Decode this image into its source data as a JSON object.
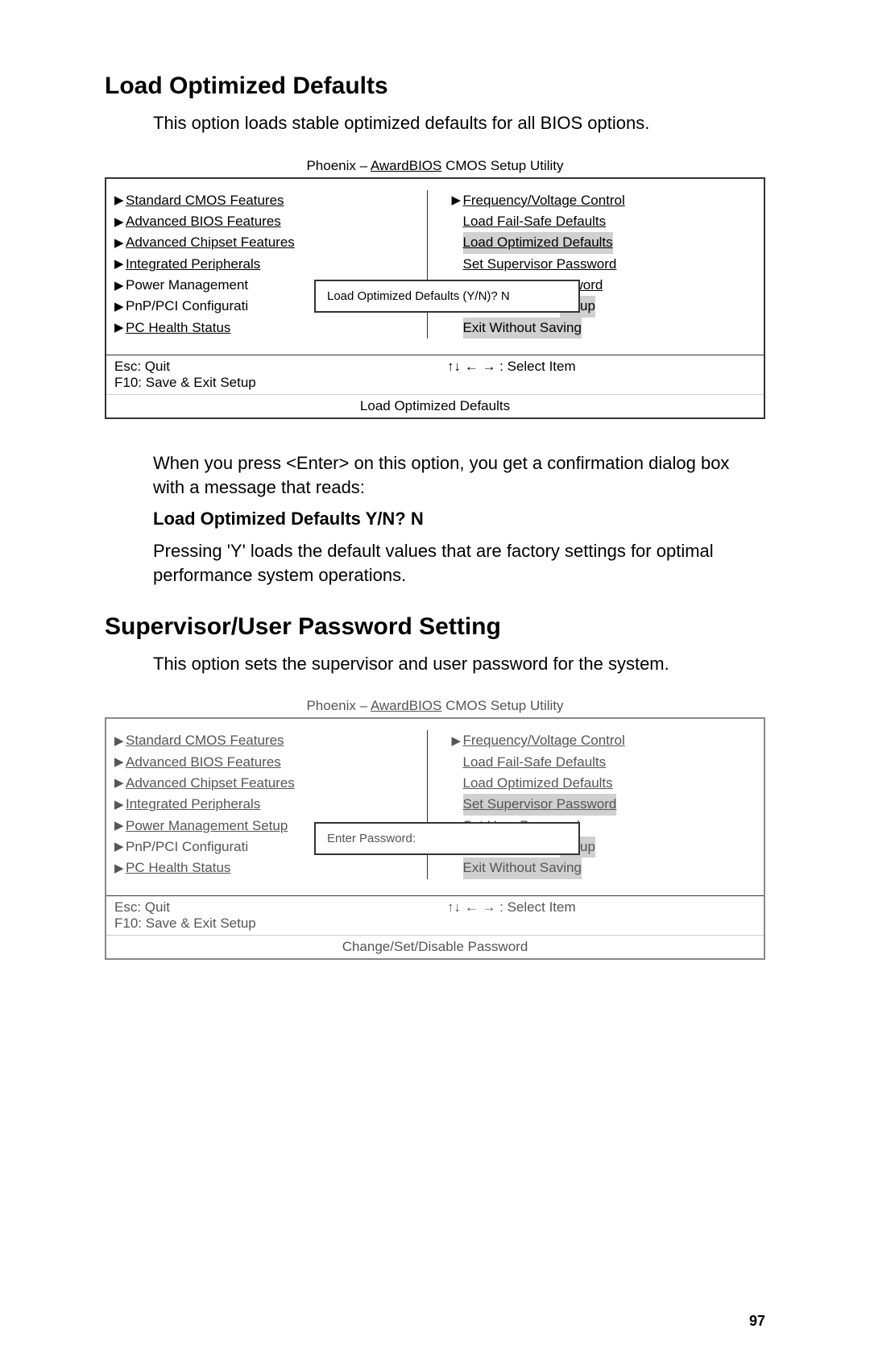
{
  "section1": {
    "heading": "Load Optimized Defaults",
    "intro": "This option loads stable optimized defaults for all BIOS options.",
    "para1": "When you press <Enter> on this option, you get a confirmation dialog box with a message that reads:",
    "prompt": "Load Optimized Defaults Y/N?  N",
    "para2": "Pressing 'Y' loads the default values that are factory settings for optimal performance system operations."
  },
  "section2": {
    "heading": "Supervisor/User Password Setting",
    "intro": "This option sets the supervisor and user password for the system."
  },
  "bios1": {
    "title_prefix": "Phoenix – ",
    "title_underline": "AwardBIOS",
    "title_suffix": " CMOS Setup Utility",
    "left": [
      {
        "marker": "▶",
        "text": "Standard CMOS Features",
        "underlined": true
      },
      {
        "marker": "▶",
        "text": "Advanced BIOS Features",
        "underlined": true
      },
      {
        "marker": "▶",
        "text": "Advanced Chipset Features",
        "underlined": true
      },
      {
        "marker": "▶",
        "text": "Integrated Peripherals",
        "underlined": true
      },
      {
        "marker": "▶",
        "text": "Power Management",
        "underlined": false
      },
      {
        "marker": "▶",
        "text": "PnP/PCI Configurati",
        "underlined": false
      },
      {
        "marker": "▶",
        "text": "PC Health Status",
        "underlined": true
      }
    ],
    "right": [
      {
        "marker": "▶",
        "text": "Frequency/Voltage Control",
        "underlined": true
      },
      {
        "marker": "",
        "text": "Load Fail-Safe Defaults",
        "underlined": true
      },
      {
        "marker": "",
        "text": "Load Optimized Defaults",
        "underlined": true,
        "highlighted": true
      },
      {
        "marker": "",
        "text": "Set Supervisor Password",
        "underlined": true
      },
      {
        "marker": "",
        "text": "ssword",
        "underlined": true,
        "padLeft": true
      },
      {
        "marker": "",
        "text": "Setup",
        "underlined": false,
        "highlighted": true,
        "padLeft": true
      },
      {
        "marker": "",
        "text": "Exit Without Saving",
        "underlined": false,
        "highlighted": true
      }
    ],
    "dialog": "Load Optimized Defaults (Y/N)? N",
    "footer_left1": "Esc:  Quit",
    "footer_left2": "F10:  Save & Exit Setup",
    "footer_right1": "↑↓ ← → : Select Item",
    "footer2": "Load Optimized Defaults"
  },
  "bios2": {
    "title_prefix": "Phoenix – ",
    "title_underline": "AwardBIOS",
    "title_suffix": " CMOS Setup Utility",
    "left": [
      {
        "marker": "▶",
        "text": "Standard CMOS Features",
        "underlined": true
      },
      {
        "marker": "▶",
        "text": "Advanced BIOS Features",
        "underlined": true
      },
      {
        "marker": "▶",
        "text": "Advanced Chipset Features",
        "underlined": true
      },
      {
        "marker": "▶",
        "text": "Integrated Peripherals",
        "underlined": true
      },
      {
        "marker": "▶",
        "text": "Power Management Setup",
        "underlined": true
      },
      {
        "marker": "▶",
        "text": "PnP/PCI Configurati",
        "underlined": false
      },
      {
        "marker": "▶",
        "text": "PC Health Status",
        "underlined": true
      }
    ],
    "right": [
      {
        "marker": "▶",
        "text": "Frequency/Voltage Control",
        "underlined": true
      },
      {
        "marker": "",
        "text": "Load Fail-Safe Defaults",
        "underlined": true
      },
      {
        "marker": "",
        "text": "Load Optimized Defaults",
        "underlined": true
      },
      {
        "marker": "",
        "text": "Set Supervisor Password",
        "underlined": true,
        "highlighted": true
      },
      {
        "marker": "",
        "text": "Set User Password",
        "underlined": true
      },
      {
        "marker": "",
        "text": "Setup",
        "underlined": false,
        "highlighted": true,
        "padLeft": true
      },
      {
        "marker": "",
        "text": "Exit Without Saving",
        "underlined": false,
        "highlighted": true
      }
    ],
    "dialog": "Enter Password:",
    "footer_left1": "Esc:  Quit",
    "footer_left2": "F10:  Save & Exit Setup",
    "footer_right1": "↑↓ ← → : Select Item",
    "footer2": "Change/Set/Disable Password"
  },
  "pageNum": "97"
}
